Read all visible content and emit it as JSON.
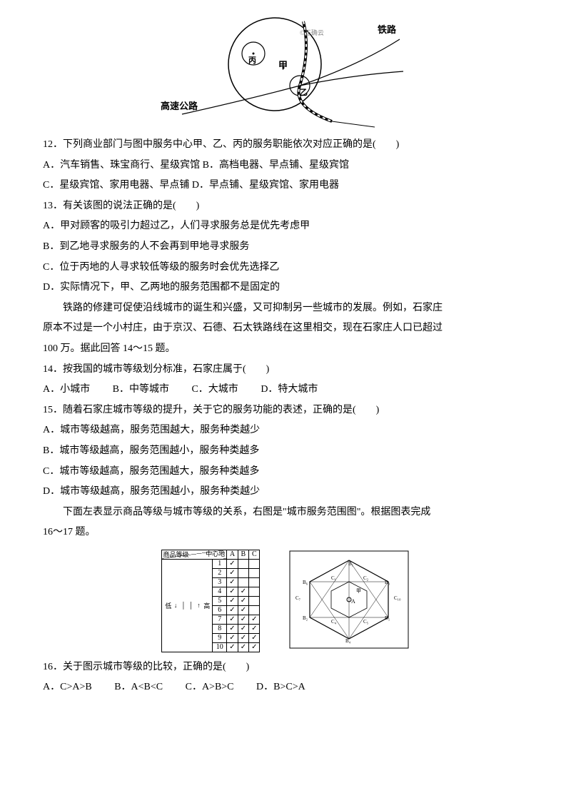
{
  "top_diagram": {
    "labels": {
      "railroad": "铁路",
      "highway": "高速公路",
      "jia": "甲",
      "yi": "乙",
      "bing": "丙",
      "watermark": "©正确云"
    }
  },
  "q12": {
    "stem": "12．下列商业部门与图中服务中心甲、乙、丙的服务职能依次对应正确的是(　　)",
    "optA": "A．汽车销售、珠宝商行、星级宾馆",
    "optB": "B．高档电器、早点铺、星级宾馆",
    "optC": "C．星级宾馆、家用电器、早点铺",
    "optD": "D．早点铺、星级宾馆、家用电器"
  },
  "q13": {
    "stem": "13．有关该图的说法正确的是(　　)",
    "optA": "A．甲对顾客的吸引力超过乙，人们寻求服务总是优先考虑甲",
    "optB": "B．到乙地寻求服务的人不会再到甲地寻求服务",
    "optC": "C．位于丙地的人寻求较低等级的服务时会优先选择乙",
    "optD": "D．实际情况下，甲、乙两地的服务范围都不是固定的"
  },
  "passage1": {
    "line1": "铁路的修建可促使沿线城市的诞生和兴盛，又可抑制另一些城市的发展。例如，石家庄",
    "line2": "原本不过是一个小村庄，由于京汉、石德、石太铁路线在这里相交，现在石家庄人口已超过",
    "line3": "100 万。据此回答 14～15 题。"
  },
  "q14": {
    "stem": "14．按我国的城市等级划分标准，石家庄属于(　　)",
    "optA": "A．小城市",
    "optB": "B．中等城市",
    "optC": "C．大城市",
    "optD": "D．特大城市"
  },
  "q15": {
    "stem": "15．随着石家庄城市等级的提升，关于它的服务功能的表述，正确的是(　　)",
    "optA": "A．城市等级越高，服务范围越大，服务种类越少",
    "optB": "B．城市等级越高，服务范围越小，服务种类越多",
    "optC": "C．城市等级越高，服务范围越大，服务种类越多",
    "optD": "D．城市等级越高，服务范围越小，服务种类越少"
  },
  "passage2": {
    "line1": "下面左表显示商品等级与城市等级的关系，右图是\"城市服务范围图\"。根据图表完成",
    "line2": "16～17 题。"
  },
  "table": {
    "header_top": "中心地",
    "header_bottom": "商品等级",
    "cols": [
      "A",
      "B",
      "C"
    ],
    "high_label": "高",
    "low_label": "低",
    "rows": [
      {
        "n": "1",
        "a": "✓",
        "b": "",
        "c": ""
      },
      {
        "n": "2",
        "a": "✓",
        "b": "",
        "c": ""
      },
      {
        "n": "3",
        "a": "✓",
        "b": "",
        "c": ""
      },
      {
        "n": "4",
        "a": "✓",
        "b": "✓",
        "c": ""
      },
      {
        "n": "5",
        "a": "✓",
        "b": "✓",
        "c": ""
      },
      {
        "n": "6",
        "a": "✓",
        "b": "✓",
        "c": ""
      },
      {
        "n": "7",
        "a": "✓",
        "b": "✓",
        "c": "✓"
      },
      {
        "n": "8",
        "a": "✓",
        "b": "✓",
        "c": "✓"
      },
      {
        "n": "9",
        "a": "✓",
        "b": "✓",
        "c": "✓"
      },
      {
        "n": "10",
        "a": "✓",
        "b": "✓",
        "c": "✓"
      }
    ]
  },
  "hex": {
    "labels": [
      "B₁",
      "C₁",
      "C₂",
      "B₂",
      "C₃",
      "C₄",
      "B₃",
      "C₅",
      "C₆",
      "B₄",
      "C₇",
      "C₈",
      "B₅",
      "C₉",
      "C₁₀",
      "B₆",
      "A",
      "甲"
    ]
  },
  "q16": {
    "stem": "16．关于图示城市等级的比较，正确的是(　　)",
    "optA": "A．C>A>B",
    "optB": "B．A<B<C",
    "optC": "C．A>B>C",
    "optD": "D．B>C>A"
  }
}
